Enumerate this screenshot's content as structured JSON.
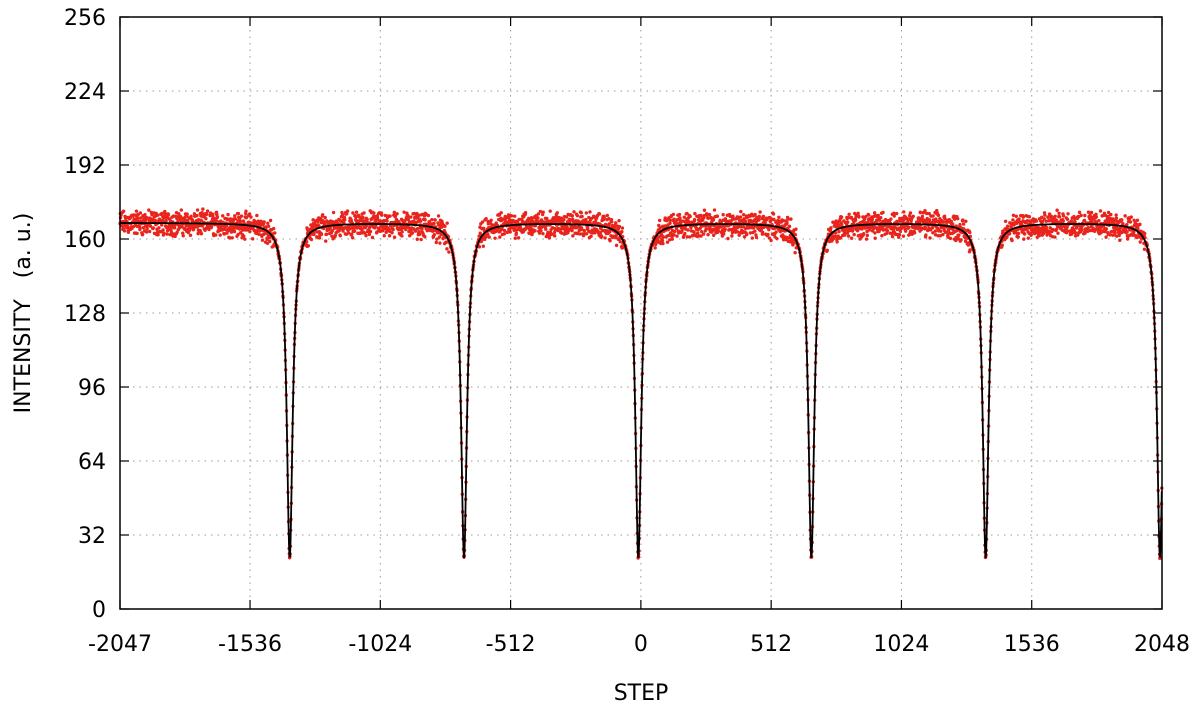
{
  "chart_data": {
    "type": "scatter",
    "title": "",
    "xlabel": "STEP",
    "ylabel": "INTENSITY   (a. u.)",
    "xlim": [
      -2047,
      2048
    ],
    "ylim": [
      0,
      256
    ],
    "x_ticks": [
      "-2047",
      "-1536",
      "-1024",
      "-512",
      "0",
      "512",
      "1024",
      "1536",
      "2048"
    ],
    "y_ticks": [
      "0",
      "32",
      "64",
      "96",
      "128",
      "160",
      "192",
      "224",
      "256"
    ],
    "grid": true,
    "legend": "none",
    "baseline": 167,
    "dip_minimum": 22,
    "dip_positions": [
      -1380,
      -695,
      -10,
      670,
      1355,
      2040
    ],
    "colors": {
      "data_points": "#e8241c",
      "fit_line": "#000000",
      "grid": "#9a9a9a"
    },
    "series": [
      {
        "kind": "points",
        "color": "#e8241c"
      },
      {
        "kind": "fit-curve",
        "color": "#000000"
      }
    ]
  }
}
